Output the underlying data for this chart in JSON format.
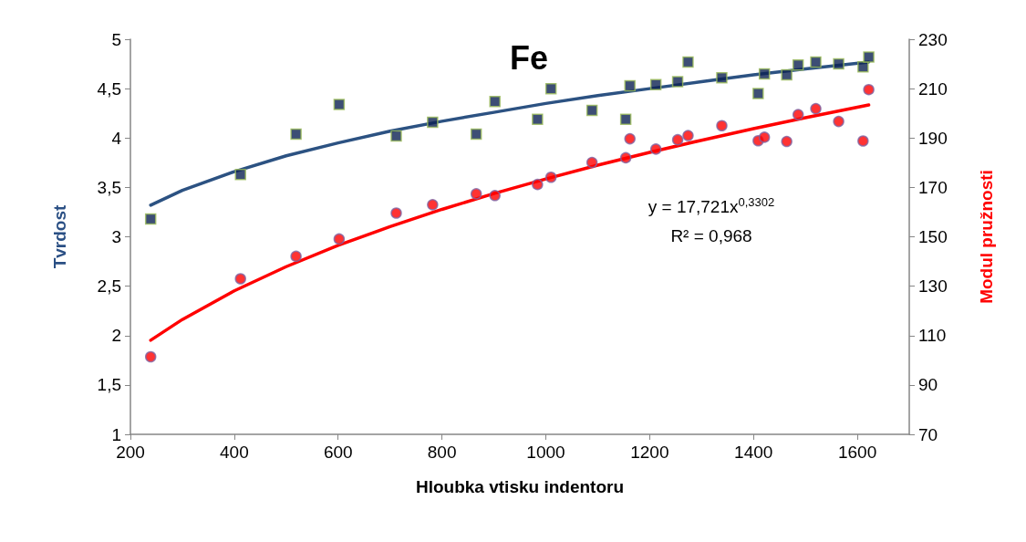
{
  "chart_data": {
    "type": "scatter",
    "title": "Fe",
    "xlabel": "Hloubka vtisku indentoru",
    "ylabel": "Tvrdost",
    "y2label": "Modul pružnosti",
    "x": [
      239,
      412,
      519,
      602,
      712,
      782,
      866,
      902,
      984,
      1010,
      1089,
      1154,
      1162,
      1212,
      1254,
      1274,
      1339,
      1409,
      1421,
      1464,
      1486,
      1520,
      1564,
      1611,
      1622
    ],
    "series": [
      {
        "marker": "square",
        "color": "#0d2252",
        "values": [
          3.18,
          3.63,
          4.04,
          4.34,
          4.02,
          4.16,
          4.04,
          4.37,
          4.19,
          4.5,
          4.28,
          4.19,
          4.53,
          4.54,
          4.57,
          4.77,
          4.61,
          4.45,
          4.65,
          4.64,
          4.74,
          4.77,
          4.75,
          4.72,
          4.82
        ]
      },
      {
        "marker": "circle",
        "color": "#ff0000",
        "axis": "y2",
        "values": [
          101.4,
          133,
          142.1,
          149.1,
          159.6,
          163,
          167.4,
          166.7,
          171.2,
          174.1,
          180.1,
          182,
          189.7,
          185.5,
          189.3,
          191,
          195,
          188.9,
          190.3,
          188.6,
          199.5,
          201.9,
          196.7,
          188.8,
          209.6
        ]
      },
      {
        "type": "line",
        "marker": "none",
        "line_style": "solid",
        "color": "#2c5282",
        "x": [
          239,
          300,
          400,
          500,
          600,
          700,
          800,
          900,
          1000,
          1100,
          1200,
          1300,
          1400,
          1500,
          1622
        ],
        "values": [
          3.32,
          3.47,
          3.66,
          3.82,
          3.95,
          4.07,
          4.17,
          4.26,
          4.35,
          4.43,
          4.5,
          4.57,
          4.64,
          4.7,
          4.77
        ]
      },
      {
        "type": "line",
        "marker": "none",
        "line_style": "solid",
        "color": "#ff0000",
        "axis": "y2",
        "x": [
          239,
          300,
          400,
          500,
          600,
          700,
          800,
          900,
          1000,
          1100,
          1200,
          1300,
          1400,
          1500,
          1622
        ],
        "values": [
          108.1,
          116.5,
          128.1,
          137.9,
          146.5,
          154.1,
          161.1,
          167.5,
          173.4,
          179,
          184.2,
          189.1,
          193.8,
          198.2,
          203.4
        ]
      }
    ],
    "xlim": [
      200,
      1700
    ],
    "xticks": [
      200,
      400,
      600,
      800,
      1000,
      1200,
      1400,
      1600
    ],
    "ylim": [
      1,
      5
    ],
    "yticks": [
      1,
      {
        "value": 1.5,
        "label": "1,5"
      },
      2,
      {
        "value": 2.5,
        "label": "2,5"
      },
      3,
      {
        "value": 3.5,
        "label": "3,5"
      },
      4,
      {
        "value": 4.5,
        "label": "4,5"
      },
      5
    ],
    "y2lim": [
      70,
      230
    ],
    "y2ticks": [
      70,
      90,
      110,
      130,
      150,
      170,
      190,
      210,
      230
    ],
    "annotations": [
      "y = 17,721x$^{0,3302}$",
      "R² = 0,968"
    ]
  }
}
